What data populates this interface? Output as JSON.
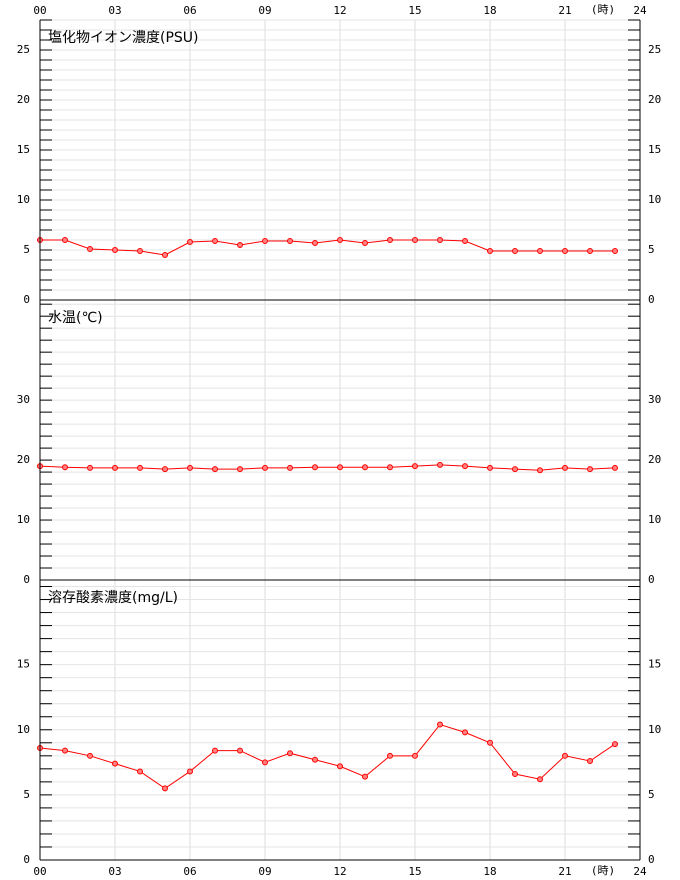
{
  "x_axis": {
    "xlim": [
      0,
      24
    ],
    "xticks": [
      {
        "value": 0,
        "label": "00"
      },
      {
        "value": 3,
        "label": "03"
      },
      {
        "value": 6,
        "label": "06"
      },
      {
        "value": 9,
        "label": "09"
      },
      {
        "value": 12,
        "label": "12"
      },
      {
        "value": 15,
        "label": "15"
      },
      {
        "value": 18,
        "label": "18"
      },
      {
        "value": 21,
        "label": "21"
      },
      24
    ],
    "unit": "(時)"
  },
  "chart_data": [
    {
      "type": "line",
      "title": "塩化物イオン濃度(PSU)",
      "color": "#ff0000",
      "x": [
        0,
        1,
        2,
        3,
        4,
        5,
        6,
        7,
        8,
        9,
        10,
        11,
        12,
        13,
        14,
        15,
        16,
        17,
        18,
        19,
        20,
        21,
        22,
        23
      ],
      "values": [
        6.0,
        6.0,
        5.1,
        5.0,
        4.9,
        4.5,
        5.8,
        5.9,
        5.5,
        5.9,
        5.9,
        5.7,
        6.0,
        5.7,
        6.0,
        6.0,
        6.0,
        5.9,
        4.9,
        4.9,
        4.9,
        4.9,
        4.9,
        4.9
      ],
      "ylim": [
        0,
        28
      ],
      "yticks": [
        0,
        5,
        10,
        15,
        20,
        25
      ],
      "minor_ytick_step": 1,
      "grid": true
    },
    {
      "type": "line",
      "title": "水温(℃)",
      "color": "#ff0000",
      "x": [
        0,
        1,
        2,
        3,
        4,
        5,
        6,
        7,
        8,
        9,
        10,
        11,
        12,
        13,
        14,
        15,
        16,
        17,
        18,
        19,
        20,
        21,
        22,
        23
      ],
      "values": [
        19.0,
        18.8,
        18.7,
        18.7,
        18.7,
        18.5,
        18.7,
        18.5,
        18.5,
        18.7,
        18.7,
        18.8,
        18.8,
        18.8,
        18.8,
        19.0,
        19.2,
        19.0,
        18.7,
        18.5,
        18.3,
        18.7,
        18.5,
        18.7
      ],
      "ylim": [
        0,
        46.7
      ],
      "yticks": [
        0,
        10,
        20,
        30
      ],
      "minor_ytick_step": 2,
      "grid": true
    },
    {
      "type": "line",
      "title": "溶存酸素濃度(mg/L)",
      "color": "#ff0000",
      "x": [
        0,
        1,
        2,
        3,
        4,
        5,
        6,
        7,
        8,
        9,
        10,
        11,
        12,
        13,
        14,
        15,
        16,
        17,
        18,
        19,
        20,
        21,
        22,
        23
      ],
      "values": [
        8.6,
        8.4,
        8.0,
        7.4,
        6.8,
        5.5,
        6.8,
        8.4,
        8.4,
        7.5,
        8.2,
        7.7,
        7.2,
        6.4,
        8.0,
        8.0,
        10.4,
        9.8,
        9.0,
        6.6,
        6.2,
        8.0,
        7.6,
        8.9
      ],
      "ylim": [
        0,
        21.5
      ],
      "yticks": [
        0,
        5,
        10,
        15
      ],
      "minor_ytick_step": 1,
      "grid": true
    }
  ]
}
